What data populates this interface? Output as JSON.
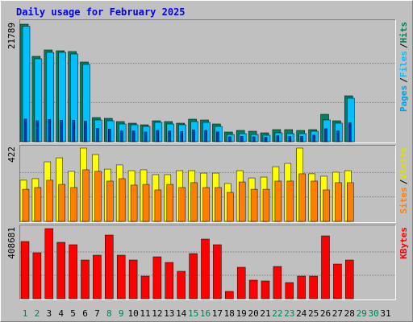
{
  "title": "Daily usage for February 2025",
  "legend_separator": "/",
  "chart_data": [
    {
      "type": "bar",
      "ylim": [
        0,
        21789
      ],
      "yticks": [
        21789
      ],
      "series": [
        {
          "name": "Hits",
          "color": "#00805c",
          "values": [
            21789,
            15820,
            17013,
            16864,
            16715,
            14775,
            4477,
            4328,
            3731,
            3432,
            3134,
            3880,
            3731,
            3432,
            4179,
            4029,
            3283,
            1791,
            2089,
            1940,
            1642,
            2239,
            2239,
            2089,
            2239,
            5074,
            3880,
            8507,
            null,
            null,
            null
          ]
        },
        {
          "name": "Files",
          "color": "#00c0ff",
          "values": [
            21400,
            15372,
            16566,
            16566,
            16267,
            14327,
            4029,
            3880,
            3283,
            3134,
            2835,
            3582,
            3283,
            3134,
            3731,
            3582,
            2835,
            1343,
            1492,
            1343,
            1194,
            1642,
            1492,
            1492,
            1940,
            4029,
            3432,
            8059,
            null,
            null,
            null
          ]
        },
        {
          "name": "Pages",
          "color": "#0040c0",
          "label_color": "#00a0e0",
          "values": [
            4200,
            3900,
            4100,
            4000,
            4000,
            3800,
            2500,
            2300,
            2000,
            2000,
            1800,
            2100,
            2000,
            1900,
            2200,
            2100,
            1800,
            900,
            1000,
            900,
            800,
            1100,
            1000,
            1000,
            1200,
            2400,
            2000,
            3500,
            null,
            null,
            null
          ]
        }
      ]
    },
    {
      "type": "bar",
      "ylim": [
        0,
        422
      ],
      "yticks": [
        422
      ],
      "series": [
        {
          "name": "Visits",
          "color": "#ffff00",
          "label_color": "#e0e000",
          "values": [
            237,
            246,
            343,
            366,
            288,
            422,
            385,
            301,
            325,
            292,
            297,
            269,
            269,
            292,
            292,
            278,
            278,
            218,
            292,
            250,
            255,
            315,
            334,
            422,
            274,
            260,
            283,
            292,
            null,
            null,
            null
          ]
        },
        {
          "name": "Sites",
          "color": "#ff8000",
          "values": [
            185,
            195,
            237,
            213,
            195,
            297,
            288,
            232,
            246,
            209,
            213,
            181,
            213,
            195,
            223,
            195,
            195,
            167,
            227,
            185,
            185,
            232,
            232,
            274,
            232,
            181,
            223,
            223,
            null,
            null,
            null
          ]
        }
      ]
    },
    {
      "type": "bar",
      "ylim": [
        0,
        408681
      ],
      "yticks": [
        408681
      ],
      "categories": [
        "1",
        "2",
        "3",
        "4",
        "5",
        "6",
        "7",
        "8",
        "9",
        "10",
        "11",
        "12",
        "13",
        "14",
        "15",
        "16",
        "17",
        "18",
        "19",
        "20",
        "21",
        "22",
        "23",
        "24",
        "25",
        "26",
        "27",
        "28",
        "29",
        "30",
        "31"
      ],
      "category_colors": [
        "#00805c",
        "#00805c",
        "#000000",
        "#000000",
        "#000000",
        "#000000",
        "#000000",
        "#00805c",
        "#00805c",
        "#000000",
        "#000000",
        "#000000",
        "#000000",
        "#000000",
        "#00805c",
        "#00805c",
        "#000000",
        "#000000",
        "#000000",
        "#000000",
        "#000000",
        "#00805c",
        "#00805c",
        "#000000",
        "#000000",
        "#000000",
        "#000000",
        "#000000",
        "#00805c",
        "#00805c",
        "#000000"
      ],
      "series": [
        {
          "name": "KBytes",
          "color": "#ff0000",
          "values": [
            333520,
            267760,
            408681,
            328820,
            314730,
            225480,
            253660,
            371100,
            253660,
            225480,
            131530,
            244270,
            211390,
            159710,
            263060,
            347610,
            314730,
            42280,
            183200,
            108040,
            103350,
            187900,
            93950,
            131530,
            131530,
            366400,
            201990,
            225480,
            null,
            null,
            null
          ]
        }
      ]
    }
  ]
}
